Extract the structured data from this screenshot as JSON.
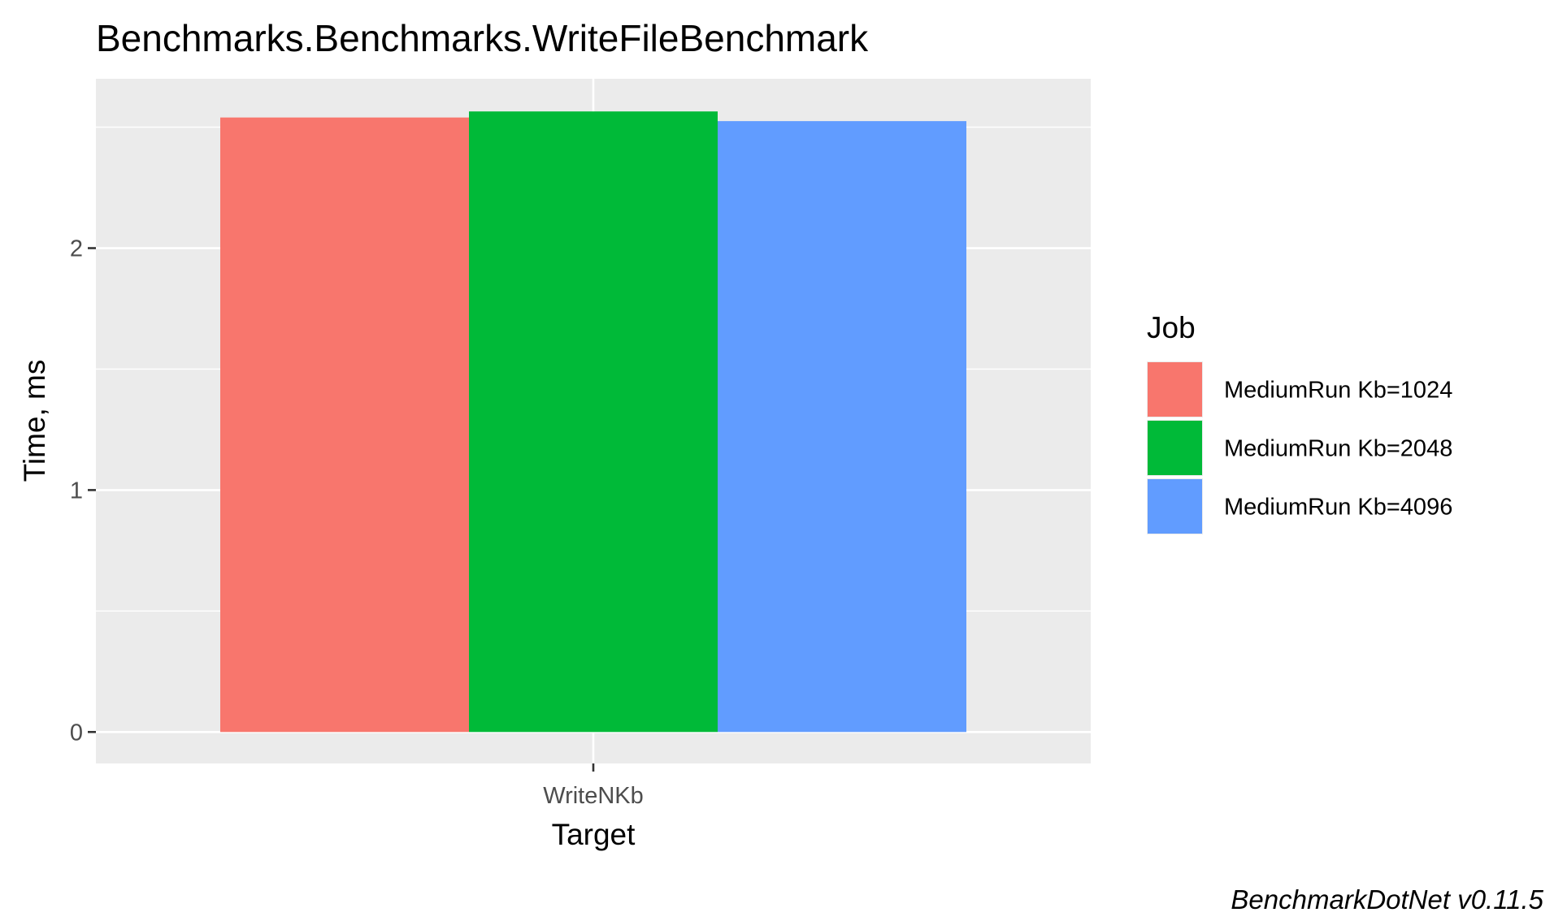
{
  "chart_data": {
    "type": "bar",
    "title": "Benchmarks.Benchmarks.WriteFileBenchmark",
    "xlabel": "Target",
    "ylabel": "Time, ms",
    "categories": [
      "WriteNKb"
    ],
    "series": [
      {
        "name": "MediumRun Kb=1024",
        "values": [
          2.54
        ],
        "color": "#F8766D"
      },
      {
        "name": "MediumRun Kb=2048",
        "values": [
          2.565
        ],
        "color": "#00BA38"
      },
      {
        "name": "MediumRun Kb=4096",
        "values": [
          2.525
        ],
        "color": "#619CFF"
      }
    ],
    "ylim": [
      -0.13,
      2.7
    ],
    "yticks": [
      0,
      1,
      2
    ],
    "yticks_labels": [
      "0",
      "1",
      "2"
    ],
    "grid": true,
    "panel_background": "#EBEBEB",
    "legend": {
      "title": "Job",
      "position": "right"
    },
    "caption": "BenchmarkDotNet v0.11.5"
  }
}
